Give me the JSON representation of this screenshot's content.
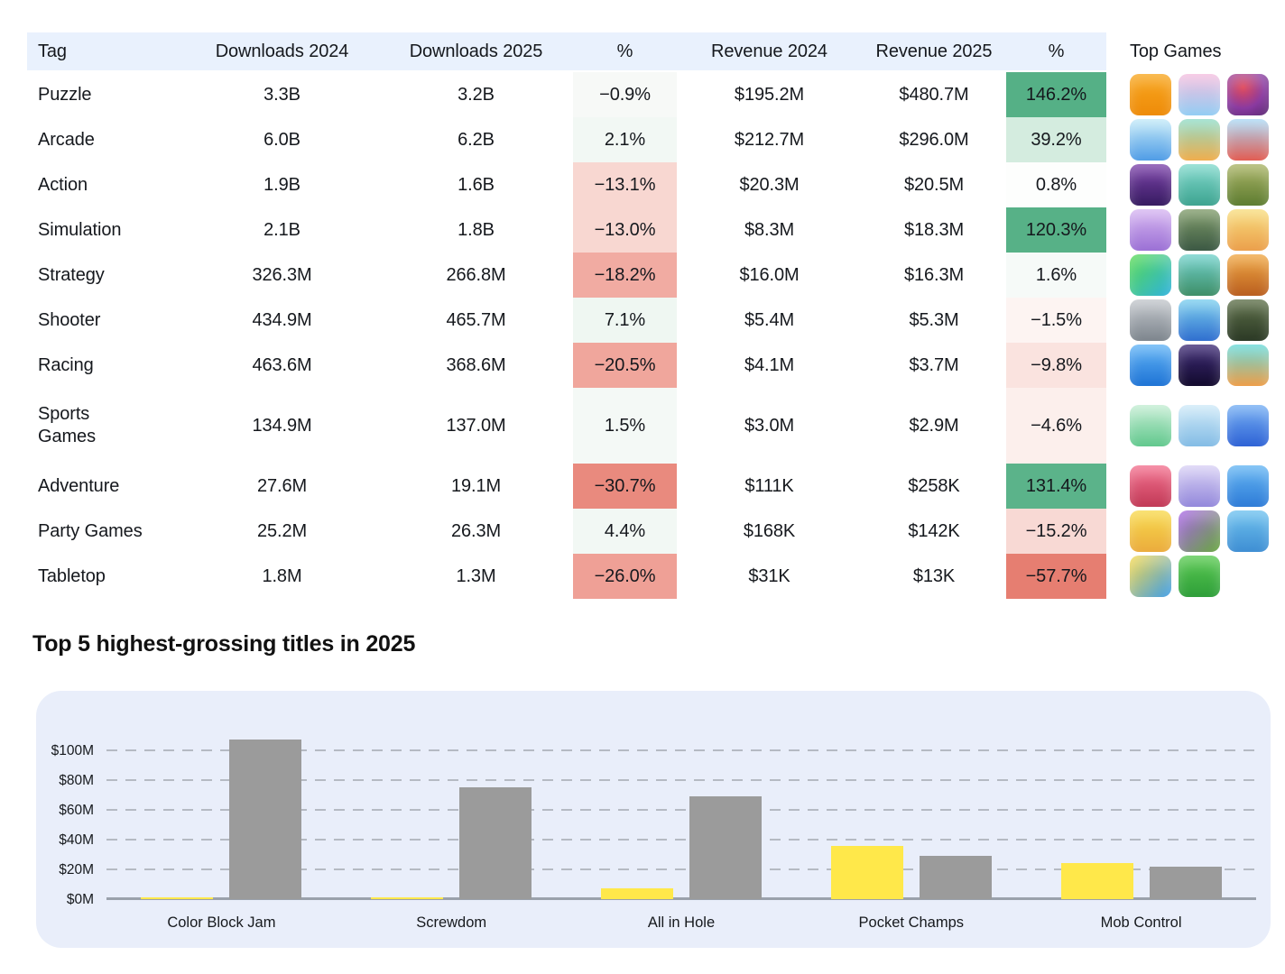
{
  "table": {
    "headers": {
      "tag": "Tag",
      "downloads_2024": "Downloads 2024",
      "downloads_2025": "Downloads 2025",
      "downloads_pct": "%",
      "revenue_2024": "Revenue 2024",
      "revenue_2025": "Revenue 2025",
      "revenue_pct": "%",
      "top_games": "Top Games"
    },
    "rows": [
      {
        "tag": "Puzzle",
        "d24": "3.3B",
        "d25": "3.2B",
        "dpct": "−0.9%",
        "dpct_style": "background:#f7f9f7",
        "r24": "$195.2M",
        "r25": "$480.7M",
        "rpct": "146.2%",
        "rpct_style": "background:#55b086",
        "icons": [
          {
            "name": "block-smiley-icon",
            "style": "background:linear-gradient(180deg,#f8a61e,#ee8b09)"
          },
          {
            "name": "gingerbread-house-icon",
            "style": "background:linear-gradient(180deg,#f5bede,#93cdf3)"
          },
          {
            "name": "yarn-knot-icon",
            "style": "background:radial-gradient(circle at 38% 32%,#e0485a,#8a3aa0 55%,#55256e)"
          }
        ]
      },
      {
        "tag": "Arcade",
        "d24": "6.0B",
        "d25": "6.2B",
        "dpct": "2.1%",
        "dpct_style": "background:#f2f8f4",
        "r24": "$212.7M",
        "r25": "$296.0M",
        "rpct": "39.2%",
        "rpct_style": "background:#d4ecdf",
        "icons": [
          {
            "name": "hole-monster-icon",
            "style": "background:linear-gradient(180deg,#c3eaf8,#4f9ce6)"
          },
          {
            "name": "jelly-runners-icon",
            "style": "background:linear-gradient(180deg,#8edcc7,#f0ae4d)"
          },
          {
            "name": "crowd-runner-icon",
            "style": "background:linear-gradient(180deg,#a9d9f6,#e25c52)"
          }
        ]
      },
      {
        "tag": "Action",
        "d24": "1.9B",
        "d25": "1.6B",
        "dpct": "−13.1%",
        "dpct_style": "background:#f8d7d1",
        "r24": "$20.3M",
        "r25": "$20.5M",
        "rpct": "0.8%",
        "rpct_style": "background:#fdfefd",
        "icons": [
          {
            "name": "timeline-warrior-icon",
            "style": "background:linear-gradient(180deg,#7c42aa,#361b60)"
          },
          {
            "name": "elf-archer-icon",
            "style": "background:linear-gradient(180deg,#80d9cc,#3da390)"
          },
          {
            "name": "jungle-archer-icon",
            "style": "background:linear-gradient(180deg,#a9b364,#5d7c31)"
          }
        ]
      },
      {
        "tag": "Simulation",
        "d24": "2.1B",
        "d25": "1.8B",
        "dpct": "−13.0%",
        "dpct_style": "background:#f8d7d1",
        "r24": "$8.3M",
        "r25": "$18.3M",
        "rpct": "120.3%",
        "rpct_style": "background:#57b187",
        "icons": [
          {
            "name": "kitten-box-icon",
            "style": "background:linear-gradient(180deg,#d6b5f1,#9b70d5)"
          },
          {
            "name": "dino-hunt-icon",
            "style": "background:linear-gradient(180deg,#7f9b69,#3b5843)"
          },
          {
            "name": "capybara-party-icon",
            "style": "background:linear-gradient(180deg,#f8dd7d,#eb9f4b)"
          }
        ]
      },
      {
        "tag": "Strategy",
        "d24": "326.3M",
        "d25": "266.8M",
        "dpct": "−18.2%",
        "dpct_style": "background:#f1aba2",
        "r24": "$16.0M",
        "r25": "$16.3M",
        "rpct": "1.6%",
        "rpct_style": "background:#f6faf8",
        "icons": [
          {
            "name": "card-clash-icon",
            "style": "background:linear-gradient(135deg,#57da50,#2fb2de)"
          },
          {
            "name": "island-war-icon",
            "style": "background:linear-gradient(180deg,#70d1cb,#3e8e67)"
          },
          {
            "name": "card-flip-icon",
            "style": "background:linear-gradient(180deg,#f0a742,#b95e1f)"
          }
        ]
      },
      {
        "tag": "Shooter",
        "d24": "434.9M",
        "d25": "465.7M",
        "dpct": "7.1%",
        "dpct_style": "background:#eff7f2",
        "r24": "$5.4M",
        "r25": "$5.3M",
        "rpct": "−1.5%",
        "rpct_style": "background:#fdf4f2",
        "icons": [
          {
            "name": "urban-sniper-icon",
            "style": "background:linear-gradient(180deg,#c3c7cc,#7d858d)"
          },
          {
            "name": "balloon-gunner-icon",
            "style": "background:linear-gradient(180deg,#7bcfee,#2f6ecf)"
          },
          {
            "name": "wild-hunt-scope-icon",
            "style": "background:linear-gradient(180deg,#5d6f48,#2b3925)"
          }
        ]
      },
      {
        "tag": "Racing",
        "d24": "463.6M",
        "d25": "368.6M",
        "dpct": "−20.5%",
        "dpct_style": "background:#f0a69c",
        "r24": "$4.1M",
        "r25": "$3.7M",
        "rpct": "−9.8%",
        "rpct_style": "background:#fae3df",
        "icons": [
          {
            "name": "street-racer-icon",
            "style": "background:linear-gradient(180deg,#60b3f6,#1e73d5)"
          },
          {
            "name": "neon-rider-icon",
            "style": "background:linear-gradient(180deg,#3e2b76,#120a2d)"
          },
          {
            "name": "hill-truck-icon",
            "style": "background:linear-gradient(180deg,#64d9d9,#ee9e49)"
          }
        ]
      },
      {
        "tag": "Sports\nGames",
        "d24": "134.9M",
        "d25": "137.0M",
        "dpct": "1.5%",
        "dpct_style": "background:#f4f9f6",
        "r24": "$3.0M",
        "r25": "$2.9M",
        "rpct": "−4.6%",
        "rpct_style": "background:#fcefec",
        "icons": [
          {
            "name": "mini-golf-icon",
            "style": "background:linear-gradient(180deg,#c4edd3,#61c88d)"
          },
          {
            "name": "flip-diver-icon",
            "style": "background:linear-gradient(180deg,#cfeaf8,#83bce5)"
          },
          {
            "name": "space-dunk-icon",
            "style": "background:linear-gradient(180deg,#73aef3,#2e62d5)"
          }
        ]
      },
      {
        "tag": "Adventure",
        "d24": "27.6M",
        "d25": "19.1M",
        "dpct": "−30.7%",
        "dpct_style": "background:#e98a7e",
        "r24": "$111K",
        "r25": "$258K",
        "rpct": "131.4%",
        "rpct_style": "background:#5bb38a",
        "icons": [
          {
            "name": "heroine-blast-icon",
            "style": "background:linear-gradient(180deg,#f3708e,#c13956)"
          },
          {
            "name": "angel-ascend-icon",
            "style": "background:linear-gradient(180deg,#d9d1f5,#9388db)"
          },
          {
            "name": "emoji-quest-icon",
            "style": "background:linear-gradient(180deg,#63b5f3,#2e7bd7)"
          }
        ]
      },
      {
        "tag": "Party Games",
        "d24": "25.2M",
        "d25": "26.3M",
        "dpct": "4.4%",
        "dpct_style": "background:#f2f8f4",
        "r24": "$168K",
        "r25": "$142K",
        "rpct": "−15.2%",
        "rpct_style": "background:#f8d9d4",
        "icons": [
          {
            "name": "blob-buddy-icon",
            "style": "background:linear-gradient(180deg,#f8d94b,#ebac3d)"
          },
          {
            "name": "party-land-icon",
            "style": "background:linear-gradient(135deg,#a963e9,#67a73e)"
          },
          {
            "name": "bird-bash-icon",
            "style": "background:linear-gradient(180deg,#6dc1ef,#3e8ed3)"
          }
        ]
      },
      {
        "tag": "Tabletop",
        "d24": "1.8M",
        "d25": "1.3M",
        "dpct": "−26.0%",
        "dpct_style": "background:#efa096",
        "r24": "$31K",
        "r25": "$13K",
        "rpct": "−57.7%",
        "rpct_style": "background:#e67e71",
        "icons": [
          {
            "name": "guess-face-icon",
            "style": "background:linear-gradient(135deg,#f8d94b,#3e9ee9)"
          },
          {
            "name": "twenty-one-card-icon",
            "style": "background:linear-gradient(180deg,#59c950,#2e9e39)"
          }
        ]
      }
    ]
  },
  "chart_data": {
    "type": "bar",
    "title": "Top 5 highest-grossing titles in 2025",
    "categories": [
      "Color Block Jam",
      "Screwdom",
      "All in Hole",
      "Pocket Champs",
      "Mob Control"
    ],
    "series": [
      {
        "name": "yellow bars",
        "color": "#ffe84a",
        "values": [
          0.5,
          0.4,
          7,
          36,
          24
        ]
      },
      {
        "name": "gray bars",
        "color": "#9b9b9b",
        "values": [
          107,
          75,
          69,
          29,
          22
        ]
      }
    ],
    "xlabel": "",
    "ylabel": "",
    "yticks": [
      0,
      20,
      40,
      60,
      80,
      100
    ],
    "ytick_labels": [
      "$0M",
      "$20M",
      "$40M",
      "$60M",
      "$80M",
      "$100M"
    ],
    "ylim": [
      0,
      112
    ],
    "grid": "horizontal dashed",
    "legend": "none",
    "panel_background": "#e9eefa",
    "header_background": "#e9f1fd"
  }
}
